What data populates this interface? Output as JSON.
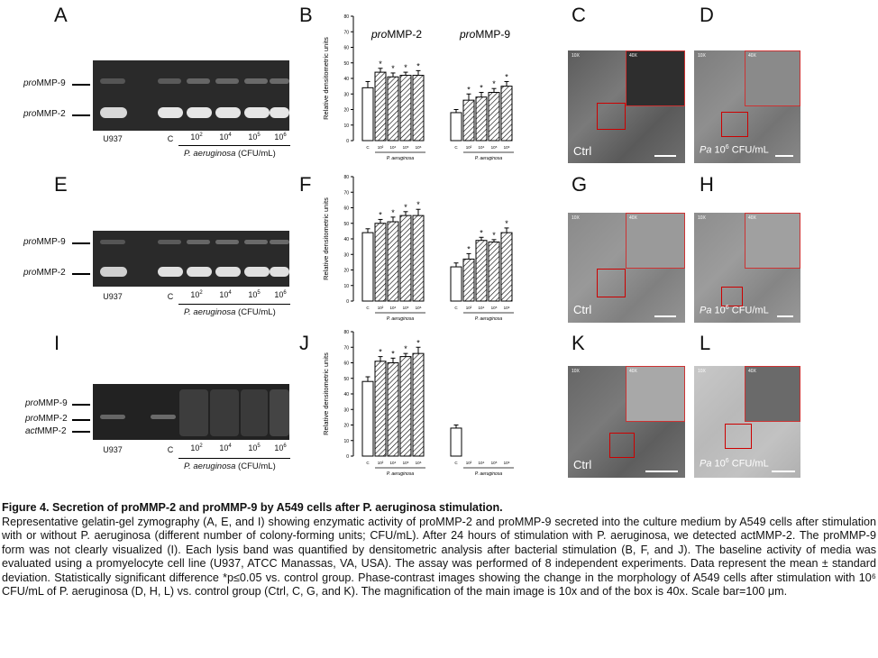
{
  "panel_letters": [
    "A",
    "B",
    "C",
    "D",
    "E",
    "F",
    "G",
    "H",
    "I",
    "J",
    "K",
    "L"
  ],
  "gel": {
    "band_labels": {
      "pro": "pro",
      "mmp9": "MMP-9",
      "mmp2": "MMP-2",
      "act": "act"
    },
    "lanes": [
      "U937",
      "C",
      "10",
      "10",
      "10",
      "10"
    ],
    "lane_exponents": [
      "",
      "",
      "2",
      "4",
      "5",
      "6"
    ],
    "group_label_italic": "P. aeruginosa",
    "group_label_unit": "(CFU/mL)"
  },
  "micro_labels": {
    "ctrl": "Ctrl",
    "pa_prefix": "Pa",
    "pa_dose_base": "10",
    "pa_dose_exp": "6",
    "pa_unit": "CFU/mL",
    "mag_main": "10X",
    "mag_inset": "40X"
  },
  "chart_data": [
    {
      "type": "bar",
      "panel": "B",
      "ylabel": "Relative densitometric units",
      "ylim": [
        0,
        80
      ],
      "yticks": [
        0,
        10,
        20,
        30,
        40,
        50,
        60,
        70,
        80
      ],
      "group_titles": [
        "proMMP-2",
        "proMMP-9"
      ],
      "categories": [
        "C",
        "10²",
        "10⁴",
        "10⁵",
        "10⁶"
      ],
      "group_axis_label": "P. aeruginosa",
      "series": [
        {
          "group": "proMMP-2",
          "values": [
            34,
            44,
            41,
            42,
            42
          ],
          "errors": [
            4,
            2.5,
            2.5,
            2,
            3
          ],
          "significant": [
            false,
            true,
            true,
            true,
            true
          ]
        },
        {
          "group": "proMMP-9",
          "values": [
            18,
            26,
            28,
            31,
            35
          ],
          "errors": [
            2,
            4,
            3,
            2.5,
            3
          ],
          "significant": [
            false,
            true,
            true,
            true,
            true
          ]
        }
      ]
    },
    {
      "type": "bar",
      "panel": "F",
      "ylabel": "Relative densitometric units",
      "ylim": [
        0,
        80
      ],
      "yticks": [
        0,
        10,
        20,
        30,
        40,
        50,
        60,
        70,
        80
      ],
      "categories": [
        "C",
        "10²",
        "10⁴",
        "10⁵",
        "10⁶"
      ],
      "group_axis_label": "P. aeruginosa",
      "series": [
        {
          "group": "proMMP-2",
          "values": [
            44,
            50,
            51,
            55,
            55
          ],
          "errors": [
            2.5,
            2.5,
            3,
            2.5,
            4
          ],
          "significant": [
            false,
            true,
            true,
            true,
            true
          ]
        },
        {
          "group": "proMMP-9",
          "values": [
            22,
            27,
            39,
            38,
            44
          ],
          "errors": [
            2.5,
            3.5,
            2,
            1.5,
            3
          ],
          "significant": [
            false,
            true,
            true,
            true,
            true
          ]
        }
      ]
    },
    {
      "type": "bar",
      "panel": "J",
      "ylabel": "Relative densitometric units",
      "ylim": [
        0,
        80
      ],
      "yticks": [
        0,
        10,
        20,
        30,
        40,
        50,
        60,
        70,
        80
      ],
      "categories": [
        "C",
        "10²",
        "10⁴",
        "10⁵",
        "10⁶"
      ],
      "group_axis_label": "P. aeruginosa",
      "series": [
        {
          "group": "proMMP-2",
          "values": [
            48,
            61,
            60,
            64,
            66
          ],
          "errors": [
            3,
            3,
            3,
            2,
            4
          ],
          "significant": [
            false,
            true,
            true,
            true,
            true
          ]
        },
        {
          "group": "proMMP-9",
          "values": [
            18,
            0,
            0,
            0,
            0
          ],
          "errors": [
            2,
            0,
            0,
            0,
            0
          ],
          "significant": [
            false,
            false,
            false,
            false,
            false
          ]
        }
      ]
    }
  ],
  "caption": {
    "title": "Figure 4. Secretion of proMMP-2 and proMMP-9 by A549 cells after P. aeruginosa stimulation.",
    "body": "Representative gelatin-gel zymography (A, E, and I) showing enzymatic activity of proMMP-2 and proMMP-9 secreted into the culture medium by A549 cells after stimulation with or without P. aeruginosa (different number of colony-forming units; CFU/mL). After 24 hours of stimulation with P. aeruginosa, we detected actMMP-2. The proMMP-9 form was not clearly visualized (I). Each lysis band was quantified by densitometric analysis after bacterial stimulation (B, F, and J). The baseline activity of media was evaluated using a promyelocyte cell line (U937, ATCC Manassas, VA, USA). The assay was performed of 8 independent experiments. Data represent the mean ± standard deviation. Statistically significant difference *p≤0.05 vs. control group. Phase-contrast images showing the change in the morphology of A549 cells after stimulation with 10⁶ CFU/mL of P. aeruginosa (D, H, L) vs. control group (Ctrl, C, G, and K). The magnification of the main image is 10x and of the box is 40x. Scale bar=100 μm."
  }
}
